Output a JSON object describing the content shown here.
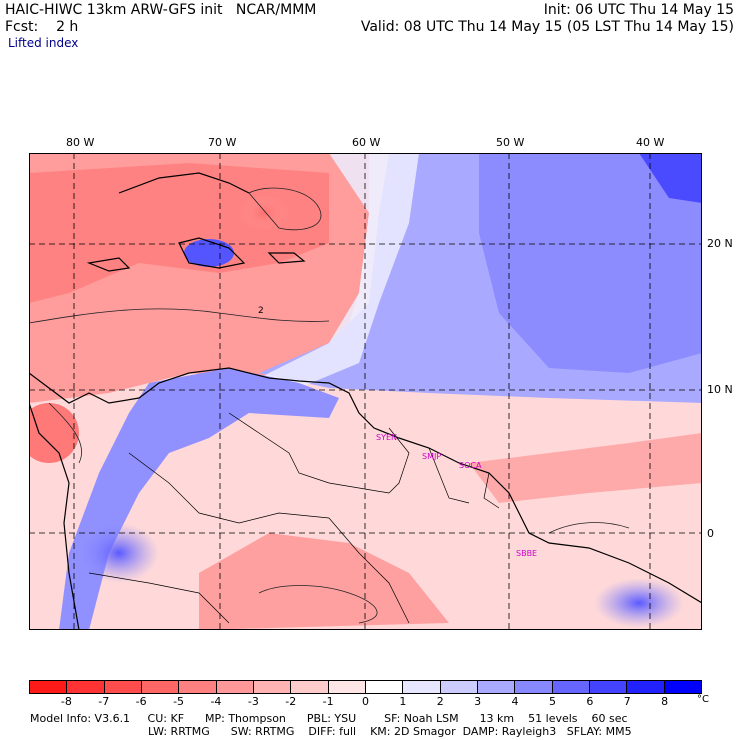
{
  "header": {
    "model_title": "HAIC-HIWC 13km ARW-GFS init",
    "organization": "NCAR/MMM",
    "init": "Init: 06 UTC Thu 14 May 15",
    "forecast_label": "Fcst:",
    "forecast_value": "2 h",
    "valid": "Valid: 08 UTC Thu 14 May 15 (05 LST Thu 14 May 15)",
    "field_name": "Lifted index"
  },
  "map": {
    "lon_labels": [
      "80 W",
      "70 W",
      "60 W",
      "50 W",
      "40 W"
    ],
    "lat_labels": [
      "20 N",
      "10 N",
      "0"
    ],
    "grid_lines": "dashed",
    "contour_value": "2",
    "stations": [
      "SYEN",
      "SMJP",
      "SOCA",
      "SBBE"
    ]
  },
  "colorbar": {
    "labels": [
      "-8",
      "-7",
      "-6",
      "-5",
      "-4",
      "-3",
      "-2",
      "-1",
      "0",
      "1",
      "2",
      "3",
      "4",
      "5",
      "6",
      "7",
      "8"
    ],
    "unit": "°C",
    "colors": [
      "#ff1a1a",
      "#ff3333",
      "#ff4d4d",
      "#ff6666",
      "#ff8080",
      "#ff9999",
      "#ffb3b3",
      "#ffcccc",
      "#ffe6e6",
      "#ffffff",
      "#e6e6ff",
      "#ccccff",
      "#aaaaff",
      "#8888ff",
      "#6666ff",
      "#4444ff",
      "#2222ff",
      "#0000ff"
    ]
  },
  "footer": {
    "line1": [
      "Model Info: V3.6.1",
      "CU: KF",
      "MP: Thompson",
      "PBL: YSU",
      "SF: Noah LSM",
      "13 km",
      "51 levels",
      "60 sec"
    ],
    "line2": [
      "LW: RRTMG",
      "SW: RRTMG",
      "DIFF: full",
      "KM: 2D Smagor",
      "DAMP: Rayleigh3",
      "SFLAY: MM5"
    ]
  }
}
